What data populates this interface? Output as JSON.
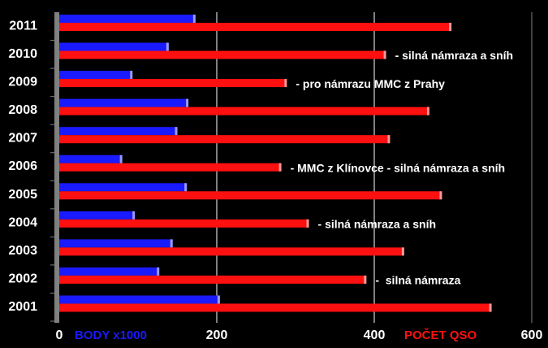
{
  "chart_data": {
    "type": "hbar",
    "categories": [
      "2011",
      "2010",
      "2009",
      "2008",
      "2007",
      "2006",
      "2005",
      "2004",
      "2003",
      "2002",
      "2001"
    ],
    "series": [
      {
        "name": "BODY x1000",
        "color": "#1a1aff",
        "values": [
          172,
          138,
          92,
          163,
          149,
          79,
          161,
          95,
          143,
          126,
          203
        ]
      },
      {
        "name": "POČET QSO",
        "color": "#ff1010",
        "values": [
          497,
          414,
          288,
          469,
          419,
          281,
          485,
          316,
          437,
          389,
          548
        ]
      }
    ],
    "annotations": [
      null,
      "- silná námraza a sníh",
      "- pro námrazu MMC z Prahy",
      null,
      null,
      "- MMC z Klínovce - silná námraza a sníh",
      null,
      "- silná námraza a sníh",
      null,
      "-  silná námraza",
      null
    ],
    "xlim": [
      0,
      600
    ],
    "xticks": [
      0,
      200,
      400,
      600
    ],
    "grid": true
  }
}
